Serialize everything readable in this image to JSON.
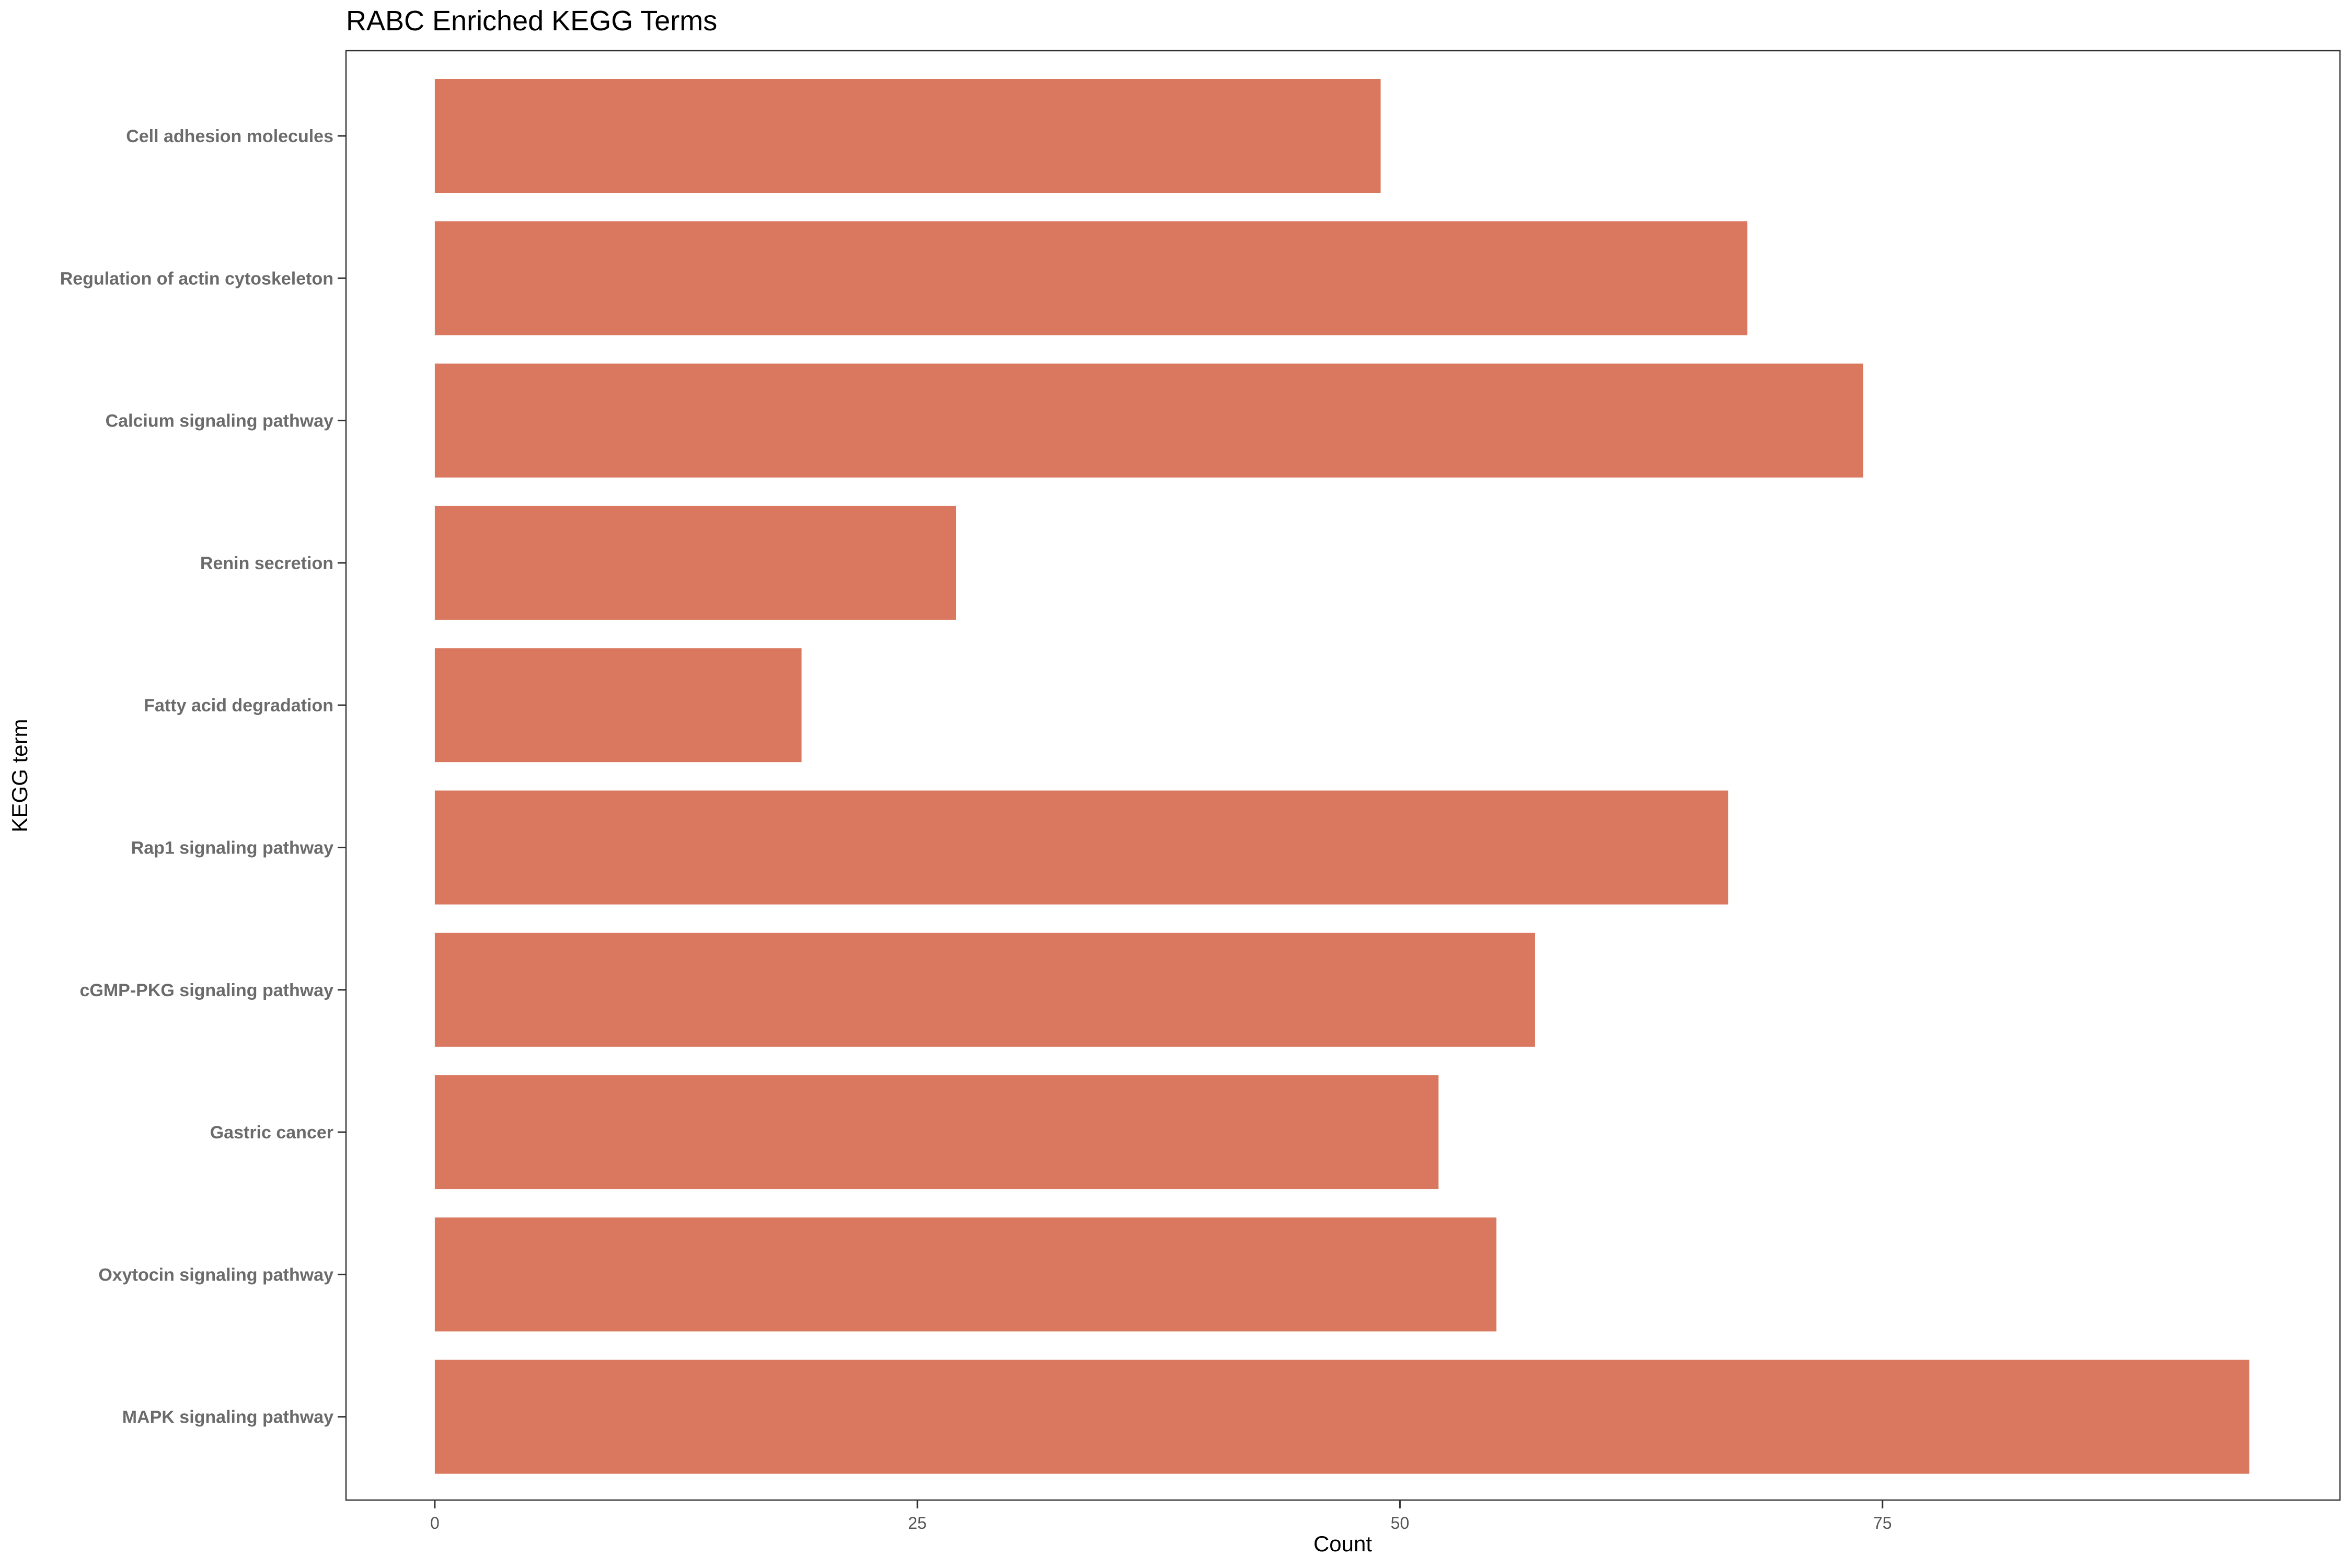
{
  "chart_data": {
    "type": "bar",
    "orientation": "horizontal",
    "title": "RABC Enriched KEGG Terms",
    "xlabel": "Count",
    "ylabel": "KEGG term",
    "categories": [
      "Cell adhesion molecules",
      "Regulation of actin cytoskeleton",
      "Calcium signaling pathway",
      "Renin secretion",
      "Fatty acid degradation",
      "Rap1 signaling pathway",
      "cGMP-PKG signaling pathway",
      "Gastric cancer",
      "Oxytocin signaling pathway",
      "MAPK signaling pathway"
    ],
    "values": [
      49,
      68,
      74,
      27,
      19,
      67,
      57,
      52,
      55,
      94
    ],
    "xlim": [
      -4.6,
      98.7
    ],
    "xticks": [
      0,
      25,
      50,
      75
    ],
    "xtick_labels": [
      "0",
      "25",
      "50",
      "75"
    ],
    "bar_color": "#D9785F",
    "grid": false,
    "legend": "none"
  }
}
